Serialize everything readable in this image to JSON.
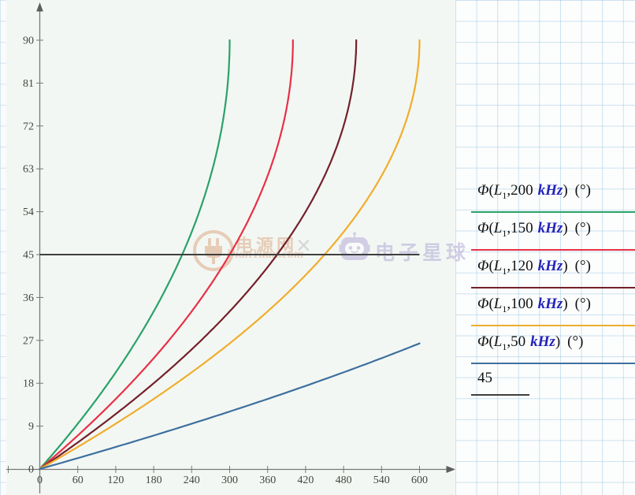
{
  "watermark": {
    "site1": "电源网",
    "domain": "DianYuan.com",
    "times": "×",
    "site2": "电子星球"
  },
  "legend": {
    "items": [
      {
        "func": "Φ",
        "open": "(",
        "arg": "L",
        "sub": "1",
        "sep": ",",
        "value": "200",
        "unit": "kHz",
        "close": ")",
        "degree": "(°)",
        "color": "#2aa268"
      },
      {
        "func": "Φ",
        "open": "(",
        "arg": "L",
        "sub": "1",
        "sep": ",",
        "value": "150",
        "unit": "kHz",
        "close": ")",
        "degree": "(°)",
        "color": "#e83046"
      },
      {
        "func": "Φ",
        "open": "(",
        "arg": "L",
        "sub": "1",
        "sep": ",",
        "value": "120",
        "unit": "kHz",
        "close": ")",
        "degree": "(°)",
        "color": "#732129"
      },
      {
        "func": "Φ",
        "open": "(",
        "arg": "L",
        "sub": "1",
        "sep": ",",
        "value": "100",
        "unit": "kHz",
        "close": ")",
        "degree": "(°)",
        "color": "#f0ad2d"
      },
      {
        "func": "Φ",
        "open": "(",
        "arg": "L",
        "sub": "1",
        "sep": ",",
        "value": "50",
        "unit": "kHz",
        "close": ")",
        "degree": "(°)",
        "color": "#3e709f"
      }
    ],
    "extra": {
      "label": "45",
      "color": "#3f3f3f"
    }
  },
  "chart_data": {
    "type": "line",
    "title": "",
    "xlabel": "",
    "ylabel": "",
    "grid": false,
    "legend_position": "right",
    "curve_model": "phi = 90*(1 - sqrt(1 - x/x90)), clipped to x <= 600",
    "x_axis": {
      "min": 0,
      "max": 600,
      "ticks": [
        0,
        60,
        120,
        180,
        240,
        300,
        360,
        420,
        480,
        540,
        600
      ]
    },
    "y_axis": {
      "min": 0,
      "max": 90,
      "ticks": [
        0,
        9,
        18,
        27,
        36,
        45,
        54,
        63,
        72,
        81,
        90
      ]
    },
    "series": [
      {
        "name": "Φ(L1,200 kHz) (°)",
        "color": "#2aa268",
        "x90": 300,
        "sample_points": [
          [
            0,
            0
          ],
          [
            60,
            9.5
          ],
          [
            120,
            20.3
          ],
          [
            180,
            33.1
          ],
          [
            240,
            49.8
          ],
          [
            300,
            90
          ]
        ]
      },
      {
        "name": "Φ(L1,150 kHz) (°)",
        "color": "#e83046",
        "x90": 400,
        "sample_points": [
          [
            0,
            0
          ],
          [
            60,
            7.0
          ],
          [
            120,
            14.7
          ],
          [
            180,
            23.3
          ],
          [
            240,
            33.1
          ],
          [
            300,
            45.0
          ],
          [
            360,
            61.5
          ],
          [
            400,
            90
          ]
        ]
      },
      {
        "name": "Φ(L1,120 kHz) (°)",
        "color": "#732129",
        "x90": 500,
        "sample_points": [
          [
            0,
            0
          ],
          [
            60,
            5.6
          ],
          [
            120,
            11.5
          ],
          [
            180,
            18.0
          ],
          [
            240,
            25.1
          ],
          [
            300,
            33.1
          ],
          [
            360,
            42.4
          ],
          [
            420,
            54.0
          ],
          [
            480,
            72.0
          ],
          [
            500,
            90
          ]
        ]
      },
      {
        "name": "Φ(L1,100 kHz) (°)",
        "color": "#f0ad2d",
        "x90": 600,
        "sample_points": [
          [
            0,
            0
          ],
          [
            60,
            4.6
          ],
          [
            120,
            9.5
          ],
          [
            180,
            14.7
          ],
          [
            240,
            20.3
          ],
          [
            300,
            26.4
          ],
          [
            360,
            33.1
          ],
          [
            420,
            40.7
          ],
          [
            480,
            49.8
          ],
          [
            540,
            61.5
          ],
          [
            600,
            90
          ]
        ]
      },
      {
        "name": "Φ(L1,50 kHz) (°)",
        "color": "#3e709f",
        "x90": 1200,
        "sample_points": [
          [
            0,
            0
          ],
          [
            60,
            2.3
          ],
          [
            120,
            4.6
          ],
          [
            180,
            7.0
          ],
          [
            240,
            9.5
          ],
          [
            300,
            12.1
          ],
          [
            360,
            14.7
          ],
          [
            420,
            17.4
          ],
          [
            480,
            20.3
          ],
          [
            540,
            23.3
          ],
          [
            600,
            26.4
          ]
        ]
      },
      {
        "name": "45",
        "type": "hline",
        "value": 45,
        "color": "#3f3f3f"
      }
    ]
  }
}
